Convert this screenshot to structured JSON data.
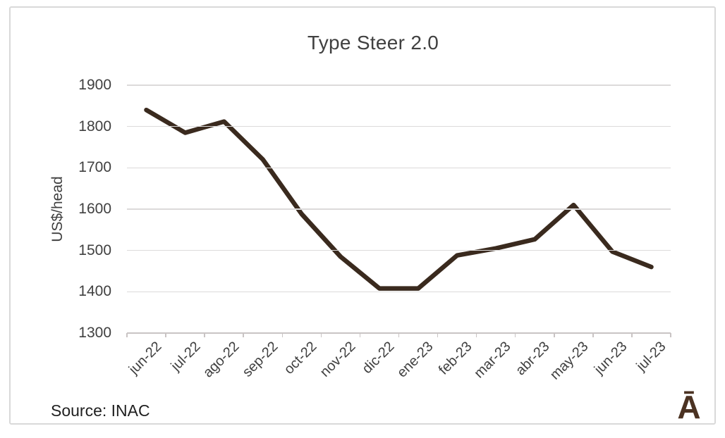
{
  "card": {
    "source_label": "Source: INAC",
    "logo_glyph": "Ā"
  },
  "chart_data": {
    "type": "line",
    "title": "Type Steer 2.0",
    "xlabel": "",
    "ylabel": "US$/head",
    "categories": [
      "jun-22",
      "jul-22",
      "ago-22",
      "sep-22",
      "oct-22",
      "nov-22",
      "dic-22",
      "ene-23",
      "feb-23",
      "mar-23",
      "abr-23",
      "may-23",
      "jun-23",
      "jul-23"
    ],
    "series": [
      {
        "name": "Type Steer 2.0",
        "values": [
          1840,
          1785,
          1812,
          1720,
          1588,
          1485,
          1408,
          1408,
          1488,
          1505,
          1527,
          1610,
          1497,
          1460
        ]
      }
    ],
    "ylim": [
      1300,
      1900
    ],
    "yticks": [
      1900,
      1800,
      1700,
      1600,
      1500,
      1400,
      1300
    ],
    "grid": "horizontal",
    "legend_position": "none",
    "line_color": "#3A2A1E",
    "gridline_color": "#DCDADA",
    "axis_color": "#C9C4C4",
    "text_color": "#404040"
  }
}
